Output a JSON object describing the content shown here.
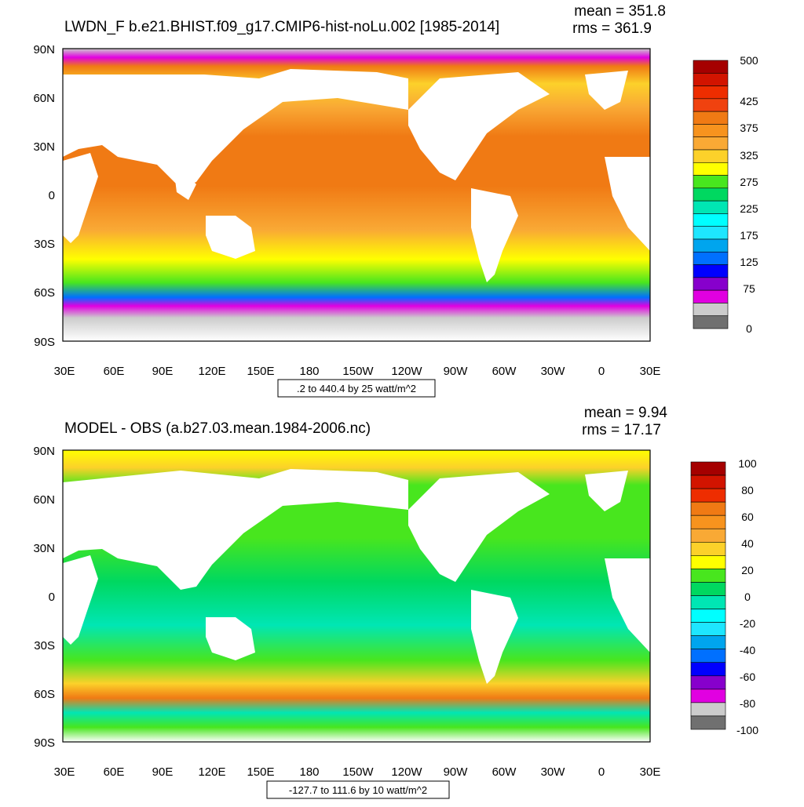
{
  "panels": [
    {
      "title": "LWDN_F b.e21.BHIST.f09_g17.CMIP6-hist-noLu.002 [1985-2014]",
      "stats": {
        "mean": "mean = 351.8",
        "rms": "rms = 361.9"
      },
      "range_label": ".2 to 440.4 by 25 watt/m^2",
      "colorbar": {
        "colors": [
          "#a50000",
          "#d21400",
          "#ee2d00",
          "#f0420f",
          "#f07a14",
          "#f7931e",
          "#f9a935",
          "#fcd12a",
          "#ffff00",
          "#48e61e",
          "#00d860",
          "#00e6b4",
          "#00ffff",
          "#1ee6ff",
          "#00a5ee",
          "#0070ff",
          "#0000ff",
          "#8700cc",
          "#e100e1",
          "#cccccc",
          "#707070"
        ],
        "labels": [
          "500",
          "425",
          "375",
          "325",
          "275",
          "225",
          "175",
          "125",
          "75",
          "0"
        ]
      }
    },
    {
      "title": "MODEL - OBS (a.b27.03.mean.1984-2006.nc)",
      "stats": {
        "mean": "mean = 9.94",
        "rms": "rms = 17.17"
      },
      "range_label": "-127.7 to 111.6 by 10 watt/m^2",
      "colorbar": {
        "colors": [
          "#a50000",
          "#d21400",
          "#ee2d00",
          "#f07a14",
          "#f7931e",
          "#f9a935",
          "#fcd12a",
          "#ffff00",
          "#48e61e",
          "#00d860",
          "#00e6b4",
          "#00ffff",
          "#1ee6ff",
          "#00a5ee",
          "#0070ff",
          "#0000ff",
          "#8700cc",
          "#e100e1",
          "#cccccc",
          "#707070"
        ],
        "labels": [
          "100",
          "80",
          "60",
          "40",
          "20",
          "0",
          "-20",
          "-40",
          "-60",
          "-80",
          "-100"
        ]
      }
    }
  ],
  "axes": {
    "lat_labels": [
      "90N",
      "60N",
      "30N",
      "0",
      "30S",
      "60S",
      "90S"
    ],
    "lon_labels": [
      "30E",
      "60E",
      "90E",
      "120E",
      "150E",
      "180",
      "150W",
      "120W",
      "90W",
      "60W",
      "30W",
      "0",
      "30E"
    ]
  }
}
